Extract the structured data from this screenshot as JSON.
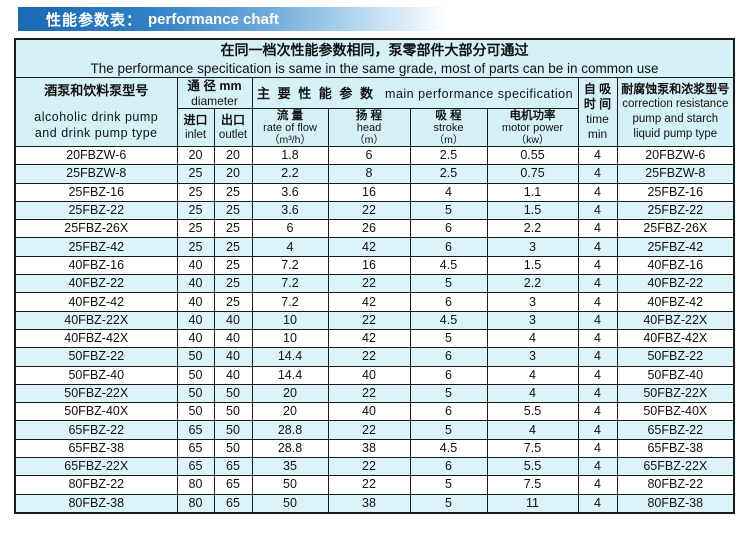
{
  "title": {
    "zh": "性能参数表：",
    "en": "performance chaft"
  },
  "notice": {
    "zh": "在同一档次性能参数相同，泵零部件大部分可通过",
    "en": "The performance specitication is same in the same grade, most of parts can be in common use"
  },
  "header": {
    "model": {
      "zh": "酒泵和饮料泵型号",
      "en1": "alcoholic drink pump",
      "en2": "and drink pump type"
    },
    "diameter": {
      "zh": "通 径 mm",
      "en": "diameter"
    },
    "inlet": {
      "zh": "进口",
      "en": "inlet"
    },
    "outlet": {
      "zh": "出口",
      "en": "outlet"
    },
    "main": {
      "zh": "主 要 性 能 参 数",
      "en": "main performance specification"
    },
    "flow": {
      "zh": "流 量",
      "en": "rate of flow",
      "unit": "（m³/h）"
    },
    "head": {
      "zh": "扬 程",
      "en": "head",
      "unit": "（m）"
    },
    "stroke": {
      "zh": "吸 程",
      "en": "stroke",
      "unit": "（m）"
    },
    "power": {
      "zh": "电机功率",
      "en": "motor power",
      "unit": "（kw）"
    },
    "time": {
      "zh1": "自 吸",
      "zh2": "时 间",
      "en1": "time",
      "en2": "min"
    },
    "correction": {
      "zh": "耐腐蚀泵和浓浆型号",
      "en1": "correction resistance",
      "en2": "pump and starch",
      "en3": "liquid pump type"
    }
  },
  "columns": [
    "model",
    "inlet",
    "outlet",
    "flow",
    "head",
    "stroke",
    "power",
    "time",
    "correction-model"
  ],
  "rows": [
    [
      "20FBZW-6",
      "20",
      "20",
      "1.8",
      "6",
      "2.5",
      "0.55",
      "4",
      "20FBZW-6"
    ],
    [
      "25FBZW-8",
      "25",
      "20",
      "2.2",
      "8",
      "2.5",
      "0.75",
      "4",
      "25FBZW-8"
    ],
    [
      "25FBZ-16",
      "25",
      "25",
      "3.6",
      "16",
      "4",
      "1.1",
      "4",
      "25FBZ-16"
    ],
    [
      "25FBZ-22",
      "25",
      "25",
      "3.6",
      "22",
      "5",
      "1.5",
      "4",
      "25FBZ-22"
    ],
    [
      "25FBZ-26X",
      "25",
      "25",
      "6",
      "26",
      "6",
      "2.2",
      "4",
      "25FBZ-26X"
    ],
    [
      "25FBZ-42",
      "25",
      "25",
      "4",
      "42",
      "6",
      "3",
      "4",
      "25FBZ-42"
    ],
    [
      "40FBZ-16",
      "40",
      "25",
      "7.2",
      "16",
      "4.5",
      "1.5",
      "4",
      "40FBZ-16"
    ],
    [
      "40FBZ-22",
      "40",
      "25",
      "7.2",
      "22",
      "5",
      "2.2",
      "4",
      "40FBZ-22"
    ],
    [
      "40FBZ-42",
      "40",
      "25",
      "7.2",
      "42",
      "6",
      "3",
      "4",
      "40FBZ-42"
    ],
    [
      "40FBZ-22X",
      "40",
      "40",
      "10",
      "22",
      "4.5",
      "3",
      "4",
      "40FBZ-22X"
    ],
    [
      "40FBZ-42X",
      "40",
      "40",
      "10",
      "42",
      "5",
      "4",
      "4",
      "40FBZ-42X"
    ],
    [
      "50FBZ-22",
      "50",
      "40",
      "14.4",
      "22",
      "6",
      "3",
      "4",
      "50FBZ-22"
    ],
    [
      "50FBZ-40",
      "50",
      "40",
      "14.4",
      "40",
      "6",
      "4",
      "4",
      "50FBZ-40"
    ],
    [
      "50FBZ-22X",
      "50",
      "50",
      "20",
      "22",
      "5",
      "4",
      "4",
      "50FBZ-22X"
    ],
    [
      "50FBZ-40X",
      "50",
      "50",
      "20",
      "40",
      "6",
      "5.5",
      "4",
      "50FBZ-40X"
    ],
    [
      "65FBZ-22",
      "65",
      "50",
      "28.8",
      "22",
      "5",
      "4",
      "4",
      "65FBZ-22"
    ],
    [
      "65FBZ-38",
      "65",
      "50",
      "28.8",
      "38",
      "4.5",
      "7.5",
      "4",
      "65FBZ-38"
    ],
    [
      "65FBZ-22X",
      "65",
      "65",
      "35",
      "22",
      "6",
      "5.5",
      "4",
      "65FBZ-22X"
    ],
    [
      "80FBZ-22",
      "80",
      "65",
      "50",
      "22",
      "5",
      "7.5",
      "4",
      "80FBZ-22"
    ],
    [
      "80FBZ-38",
      "80",
      "65",
      "50",
      "38",
      "5",
      "11",
      "4",
      "80FBZ-38"
    ]
  ],
  "colors": {
    "title_bar_blue": "#1b69b4",
    "header_bg": "#d4f1f7",
    "row_alt_bg": "#dcf4f9",
    "border": "#1a1a1a"
  }
}
